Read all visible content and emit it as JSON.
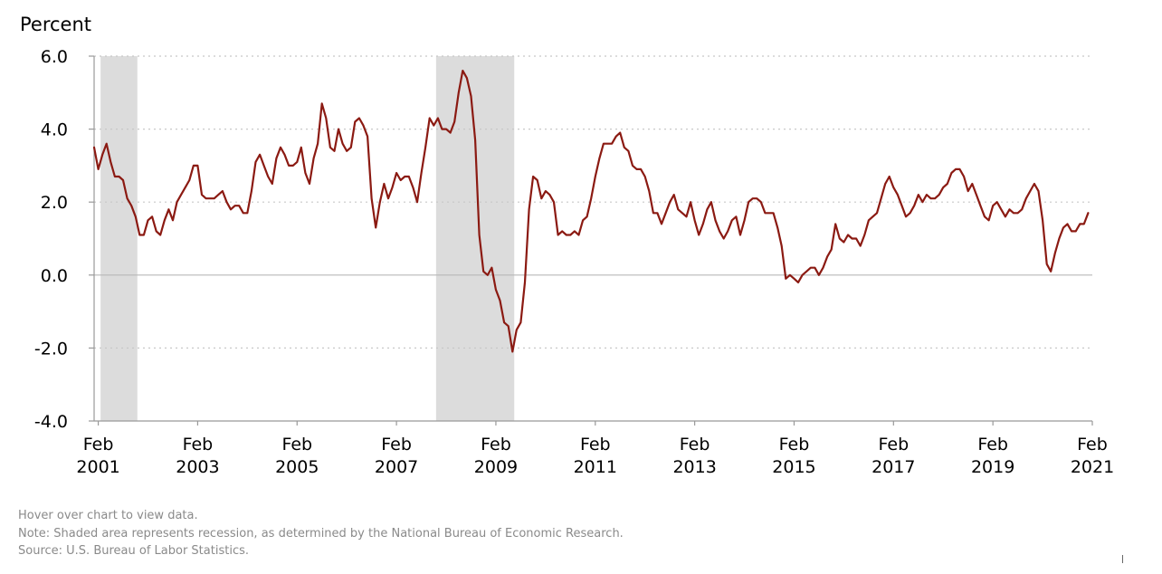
{
  "chart_data": {
    "type": "line",
    "ylabel": "Percent",
    "title": "",
    "xlabel": "",
    "ylim": [
      -4.0,
      6.0
    ],
    "yticks": [
      -4.0,
      -2.0,
      0.0,
      2.0,
      4.0,
      6.0
    ],
    "ytick_labels": [
      "-4.0",
      "-2.0",
      "0.0",
      "2.0",
      "4.0",
      "6.0"
    ],
    "xlim": [
      "2001-01",
      "2021-02"
    ],
    "xticks": [
      {
        "date": "2001-02",
        "month": "Feb",
        "year": "2001"
      },
      {
        "date": "2003-02",
        "month": "Feb",
        "year": "2003"
      },
      {
        "date": "2005-02",
        "month": "Feb",
        "year": "2005"
      },
      {
        "date": "2007-02",
        "month": "Feb",
        "year": "2007"
      },
      {
        "date": "2009-02",
        "month": "Feb",
        "year": "2009"
      },
      {
        "date": "2011-02",
        "month": "Feb",
        "year": "2011"
      },
      {
        "date": "2013-02",
        "month": "Feb",
        "year": "2013"
      },
      {
        "date": "2015-02",
        "month": "Feb",
        "year": "2015"
      },
      {
        "date": "2017-02",
        "month": "Feb",
        "year": "2017"
      },
      {
        "date": "2019-02",
        "month": "Feb",
        "year": "2019"
      },
      {
        "date": "2021-02",
        "month": "Feb",
        "year": "2021"
      }
    ],
    "grid": "dotted horizontal",
    "recessions": [
      {
        "start": "2001-03",
        "end": "2001-11"
      },
      {
        "start": "2007-12",
        "end": "2009-06"
      }
    ],
    "colors": {
      "line": "#8b1a12",
      "recession": "#dcdcdc",
      "grid": "#c8c8c8",
      "axis": "#999999",
      "zero_line": "#b8b8b8"
    },
    "series": [
      {
        "start": "2001-01",
        "values": [
          3.5,
          2.9,
          3.3,
          3.6,
          3.1,
          2.7,
          2.7,
          2.6,
          2.1,
          1.9,
          1.6,
          1.1,
          1.1,
          1.5,
          1.6,
          1.2,
          1.1,
          1.5,
          1.8,
          1.5,
          2.0,
          2.2,
          2.4,
          2.6,
          3.0,
          3.0,
          2.2,
          2.1,
          2.1,
          2.1,
          2.2,
          2.3,
          2.0,
          1.8,
          1.9,
          1.9,
          1.7,
          1.7,
          2.3,
          3.1,
          3.3,
          3.0,
          2.7,
          2.5,
          3.2,
          3.5,
          3.3,
          3.0,
          3.0,
          3.1,
          3.5,
          2.8,
          2.5,
          3.2,
          3.6,
          4.7,
          4.3,
          3.5,
          3.4,
          4.0,
          3.6,
          3.4,
          3.5,
          4.2,
          4.3,
          4.1,
          3.8,
          2.1,
          1.3,
          2.0,
          2.5,
          2.1,
          2.4,
          2.8,
          2.6,
          2.7,
          2.7,
          2.4,
          2.0,
          2.8,
          3.5,
          4.3,
          4.1,
          4.3,
          4.0,
          4.0,
          3.9,
          4.2,
          5.0,
          5.6,
          5.4,
          4.9,
          3.7,
          1.1,
          0.1,
          0.0,
          0.2,
          -0.4,
          -0.7,
          -1.3,
          -1.4,
          -2.1,
          -1.5,
          -1.3,
          -0.2,
          1.8,
          2.7,
          2.6,
          2.1,
          2.3,
          2.2,
          2.0,
          1.1,
          1.2,
          1.1,
          1.1,
          1.2,
          1.1,
          1.5,
          1.6,
          2.1,
          2.7,
          3.2,
          3.6,
          3.6,
          3.6,
          3.8,
          3.9,
          3.5,
          3.4,
          3.0,
          2.9,
          2.9,
          2.7,
          2.3,
          1.7,
          1.7,
          1.4,
          1.7,
          2.0,
          2.2,
          1.8,
          1.7,
          1.6,
          2.0,
          1.5,
          1.1,
          1.4,
          1.8,
          2.0,
          1.5,
          1.2,
          1.0,
          1.2,
          1.5,
          1.6,
          1.1,
          1.5,
          2.0,
          2.1,
          2.1,
          2.0,
          1.7,
          1.7,
          1.7,
          1.3,
          0.8,
          -0.1,
          0.0,
          -0.1,
          -0.2,
          0.0,
          0.1,
          0.2,
          0.2,
          0.0,
          0.2,
          0.5,
          0.7,
          1.4,
          1.0,
          0.9,
          1.1,
          1.0,
          1.0,
          0.8,
          1.1,
          1.5,
          1.6,
          1.7,
          2.1,
          2.5,
          2.7,
          2.4,
          2.2,
          1.9,
          1.6,
          1.7,
          1.9,
          2.2,
          2.0,
          2.2,
          2.1,
          2.1,
          2.2,
          2.4,
          2.5,
          2.8,
          2.9,
          2.9,
          2.7,
          2.3,
          2.5,
          2.2,
          1.9,
          1.6,
          1.5,
          1.9,
          2.0,
          1.8,
          1.6,
          1.8,
          1.7,
          1.7,
          1.8,
          2.1,
          2.3,
          2.5,
          2.3,
          1.5,
          0.3,
          0.1,
          0.6,
          1.0,
          1.3,
          1.4,
          1.2,
          1.2,
          1.4,
          1.4,
          1.7
        ]
      }
    ]
  },
  "notes": {
    "hover": "Hover over chart to view data.",
    "note": "Note: Shaded area represents recession, as determined by the National Bureau of Economic Research.",
    "source": "Source: U.S. Bureau of Labor Statistics."
  }
}
